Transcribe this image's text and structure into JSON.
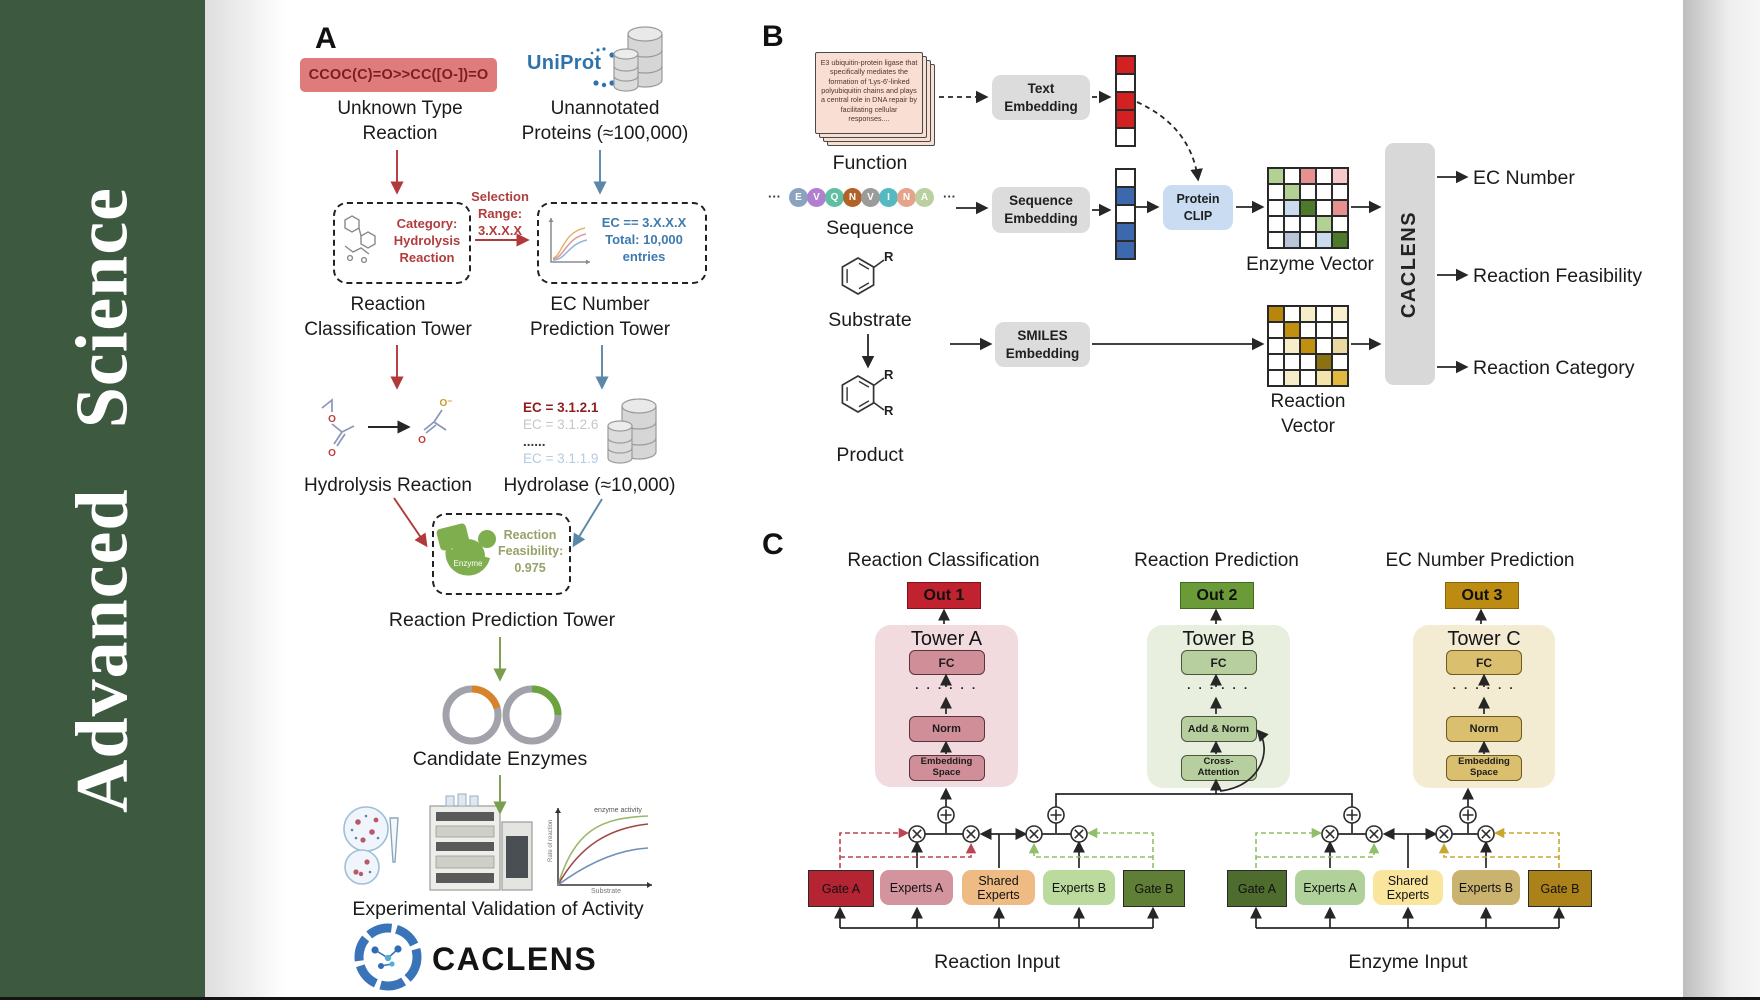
{
  "journal": {
    "name": "Advanced Science"
  },
  "colors": {
    "sidebar_bg": "#3d5a40"
  },
  "panel_a": {
    "label": "A",
    "smiles": "CCOC(C)=O>>CC([O-])=O",
    "unknown_reaction": [
      "Unknown Type",
      "Reaction"
    ],
    "uniprot": "UniProt",
    "unannotated": [
      "Unannotated",
      "Proteins (≈100,000)"
    ],
    "classification_box": [
      "Category:",
      "Hydrolysis",
      "Reaction"
    ],
    "selection": [
      "Selection",
      "Range:",
      "3.X.X.X"
    ],
    "ec_box": [
      "EC == 3.X.X.X",
      "Total: 10,000",
      "entries"
    ],
    "classification_tower": [
      "Reaction",
      "Classification Tower"
    ],
    "ec_tower": [
      "EC Number",
      "Prediction Tower"
    ],
    "hydrolysis_reaction": "Hydrolysis Reaction",
    "atom_o": "O",
    "atom_o_minus": "O⁻",
    "ec_list": [
      {
        "text": "EC = 3.1.2.1",
        "color": "#8e1f1f",
        "bold": true
      },
      {
        "text": "EC = 3.1.2.6",
        "color": "#c6c6c6",
        "bold": false
      },
      {
        "text": "......",
        "color": "#3a3a3a",
        "bold": true
      },
      {
        "text": "EC = 3.1.1.9",
        "color": "#b4cbe4",
        "bold": false
      }
    ],
    "hydrolase": "Hydrolase (≈10,000)",
    "enzyme_badge": "Enzyme",
    "feasibility": [
      "Reaction",
      "Feasibility:",
      "0.975"
    ],
    "prediction_tower": "Reaction Prediction Tower",
    "candidate_enzymes": "Candidate Enzymes",
    "validation": "Experimental Validation of Activity",
    "kinetics": {
      "annotation": "enzyme activity",
      "ylabel": "Rate of reaction",
      "xlabel": "Substrate"
    },
    "brand": "CACLENS"
  },
  "panel_b": {
    "label": "B",
    "function_text": "E3 ubiquitin-protein ligase that specifically mediates the formation of 'Lys-6'-linked polyubiquitin chains and plays a central role in DNA repair by facilitating cellular responses....",
    "function_label": "Function",
    "ellipsis": "···",
    "sequence_tokens": [
      {
        "letter": "E",
        "color": "#8ba3be"
      },
      {
        "letter": "V",
        "color": "#b07fd0"
      },
      {
        "letter": "Q",
        "color": "#5fbfa2"
      },
      {
        "letter": "N",
        "color": "#b16327"
      },
      {
        "letter": "V",
        "color": "#9b9b9b"
      },
      {
        "letter": "I",
        "color": "#55b9c1"
      },
      {
        "letter": "N",
        "color": "#e6a38b"
      },
      {
        "letter": "A",
        "color": "#bad0a0"
      }
    ],
    "sequence_label": "Sequence",
    "substrate_label": "Substrate",
    "product_label": "Product",
    "r_group": "R",
    "text_embedding": [
      "Text",
      "Embedding"
    ],
    "sequence_embedding": [
      "Sequence",
      "Embedding"
    ],
    "smiles_embedding": [
      "SMILES",
      "Embedding"
    ],
    "protein_clip": [
      "Protein",
      "CLIP"
    ],
    "text_vector": [
      "#d32020",
      "#ffffff",
      "#d32020",
      "#d32020",
      "#ffffff"
    ],
    "sequence_vector": [
      "#ffffff",
      "#3e68ae",
      "#ffffff",
      "#3e68ae",
      "#3e68ae"
    ],
    "enzyme_matrix": [
      [
        "#b2d293",
        "#ffffff",
        "#e79090",
        "#ffffff",
        "#f6caca"
      ],
      [
        "#ffffff",
        "#b2d293",
        "#ffffff",
        "#ffffff",
        "#ffffff"
      ],
      [
        "#ffffff",
        "#ccdcf0",
        "#4d7a2a",
        "#ffffff",
        "#e79090"
      ],
      [
        "#ffffff",
        "#ffffff",
        "#ffffff",
        "#b2d293",
        "#ffffff"
      ],
      [
        "#ffffff",
        "#b9c6d8",
        "#ffffff",
        "#ccdcf0",
        "#4d7a2a"
      ]
    ],
    "enzyme_vector_label": "Enzyme Vector",
    "reaction_matrix": [
      [
        "#b8860b",
        "#ffffff",
        "#f7eec9",
        "#ffffff",
        "#f9f0d2"
      ],
      [
        "#ffffff",
        "#c29010",
        "#ffffff",
        "#ffffff",
        "#ffffff"
      ],
      [
        "#ffffff",
        "#f7eec9",
        "#c29010",
        "#ffffff",
        "#ead9a0"
      ],
      [
        "#ffffff",
        "#ffffff",
        "#ffffff",
        "#8a7210",
        "#ffffff"
      ],
      [
        "#ffffff",
        "#f7eec9",
        "#ffffff",
        "#f3e3ac",
        "#e0b93e"
      ]
    ],
    "reaction_vector_label": "Reaction Vector",
    "caclens": "CACLENS",
    "outputs": [
      "EC Number",
      "Reaction Feasibility",
      "Reaction Category"
    ]
  },
  "panel_c": {
    "label": "C",
    "dots": "· · · · · ·",
    "sections": [
      {
        "title": "Reaction Classification",
        "out": "Out 1",
        "out_bg": "#c1222f",
        "out_border": "#841119"
      },
      {
        "title": "Reaction Prediction",
        "out": "Out 2",
        "out_bg": "#6b9b39",
        "out_border": "#3f6b1f"
      },
      {
        "title": "EC Number Prediction",
        "out": "Out 3",
        "out_bg": "#bb8b12",
        "out_border": "#8a6508"
      }
    ],
    "towers": [
      {
        "name": "Tower A",
        "bg": "#f1dbdf",
        "block_bg": "#d08e98",
        "block_border": "#59343c",
        "blocks": [
          "FC",
          "Norm"
        ],
        "bottom_block": [
          "Embedding",
          "Space"
        ]
      },
      {
        "name": "Tower B",
        "bg": "#e9efdf",
        "block_bg": "#b7cf9e",
        "block_border": "#49563b",
        "blocks": [
          "FC",
          "Add & Norm"
        ],
        "bottom_block": [
          "Cross-",
          "Attention"
        ]
      },
      {
        "name": "Tower C",
        "bg": "#f3ecd3",
        "block_bg": "#d9bf6e",
        "block_border": "#6e5a22",
        "blocks": [
          "FC",
          "Norm"
        ],
        "bottom_block": [
          "Embedding",
          "Space"
        ]
      }
    ],
    "moe_groups": [
      {
        "input_label": "Reaction Input",
        "boxes": [
          {
            "label": "Gate A",
            "bg": "#b42432"
          },
          {
            "label": "Experts A",
            "bg": "#d4949d"
          },
          {
            "label": "Shared Experts",
            "bg": "#eebb84"
          },
          {
            "label": "Experts B",
            "bg": "#badb9d"
          },
          {
            "label": "Gate B",
            "bg": "#5f7f37"
          }
        ]
      },
      {
        "input_label": "Enzyme Input",
        "boxes": [
          {
            "label": "Gate A",
            "bg": "#4d6c2e"
          },
          {
            "label": "Experts A",
            "bg": "#b0d199"
          },
          {
            "label": "Shared Experts",
            "bg": "#f9e59b"
          },
          {
            "label": "Experts B",
            "bg": "#cab26f"
          },
          {
            "label": "Gate B",
            "bg": "#ab8119"
          }
        ]
      }
    ]
  }
}
